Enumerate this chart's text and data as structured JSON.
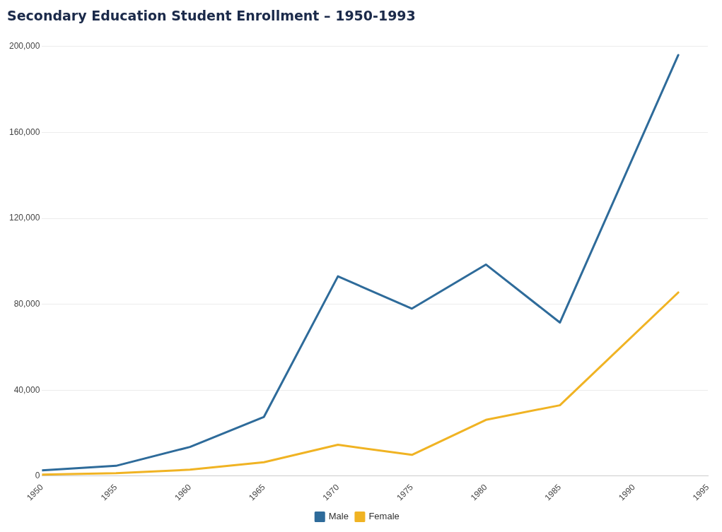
{
  "chart_data": {
    "type": "line",
    "title": "Secondary Education Student Enrollment – 1950-1993",
    "x": [
      1950,
      1955,
      1960,
      1965,
      1970,
      1975,
      1980,
      1985,
      1993
    ],
    "series": [
      {
        "name": "Male",
        "color": "#2e6b9a",
        "values": [
          2700,
          4800,
          13600,
          27600,
          93000,
          78000,
          98500,
          71500,
          196000
        ]
      },
      {
        "name": "Female",
        "color": "#f0b323",
        "values": [
          700,
          1400,
          3000,
          6500,
          14600,
          9900,
          26200,
          33000,
          85500
        ]
      }
    ],
    "xlim": [
      1950,
      1995
    ],
    "xticks": [
      1950,
      1955,
      1960,
      1965,
      1970,
      1975,
      1980,
      1985,
      1990,
      1995
    ],
    "ylim": [
      0,
      200000
    ],
    "yticks": [
      {
        "value": 0,
        "label": "0"
      },
      {
        "value": 40000,
        "label": "40,000"
      },
      {
        "value": 80000,
        "label": "80,000"
      },
      {
        "value": 120000,
        "label": "120,000"
      },
      {
        "value": 160000,
        "label": "160,000"
      },
      {
        "value": 200000,
        "label": "200,000"
      }
    ],
    "grid": "y",
    "legend": "bottom",
    "marker": "none",
    "line_style": "solid"
  }
}
